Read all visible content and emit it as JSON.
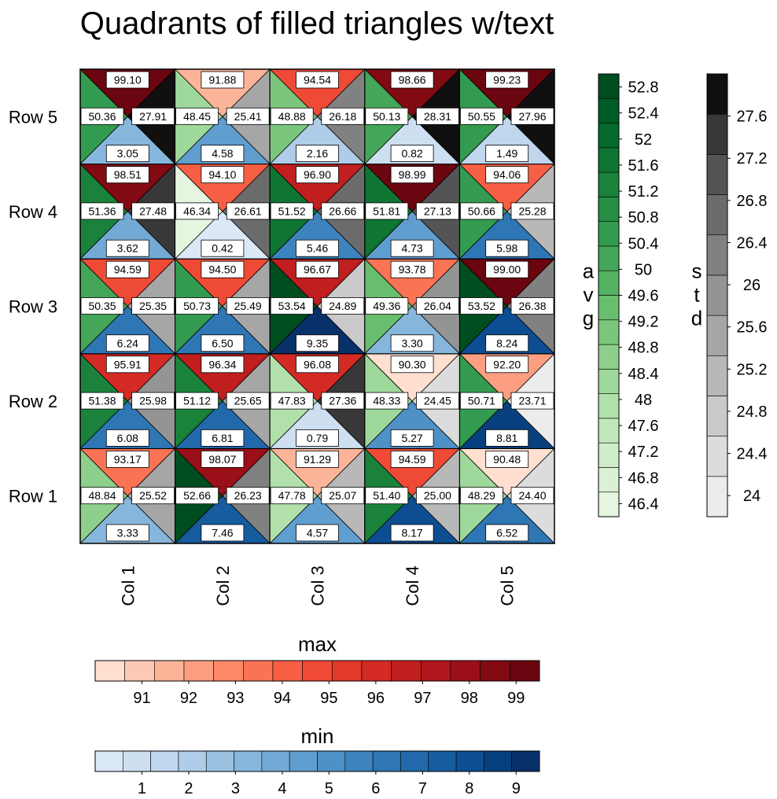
{
  "chart_data": {
    "type": "heatmap",
    "title": "Quadrants of filled triangles w/text",
    "rows": [
      "Row 1",
      "Row 2",
      "Row 3",
      "Row 4",
      "Row 5"
    ],
    "cols": [
      "Col 1",
      "Col 2",
      "Col 3",
      "Col 4",
      "Col 5"
    ],
    "quadrant_order": [
      "top: max",
      "left: avg",
      "right: std",
      "bottom: min"
    ],
    "max": [
      [
        93.17,
        98.07,
        91.29,
        94.59,
        90.48
      ],
      [
        95.91,
        96.34,
        96.08,
        90.3,
        92.2
      ],
      [
        94.59,
        94.5,
        96.67,
        93.78,
        99.0
      ],
      [
        98.51,
        94.1,
        96.9,
        98.99,
        94.06
      ],
      [
        99.1,
        91.88,
        94.54,
        98.66,
        99.23
      ]
    ],
    "avg": [
      [
        48.84,
        52.66,
        47.78,
        51.4,
        48.29
      ],
      [
        51.38,
        51.12,
        47.83,
        48.33,
        50.71
      ],
      [
        50.35,
        50.73,
        53.54,
        49.36,
        53.52
      ],
      [
        51.36,
        46.34,
        51.52,
        51.81,
        50.66
      ],
      [
        50.36,
        48.45,
        48.88,
        50.13,
        50.55
      ]
    ],
    "std": [
      [
        25.52,
        26.23,
        25.07,
        25.0,
        24.4
      ],
      [
        25.98,
        25.65,
        27.36,
        24.45,
        23.71
      ],
      [
        25.35,
        25.49,
        24.89,
        26.04,
        26.38
      ],
      [
        27.48,
        26.61,
        26.66,
        27.13,
        25.28
      ],
      [
        27.91,
        25.41,
        26.18,
        28.31,
        27.96
      ]
    ],
    "min": [
      [
        3.33,
        7.46,
        4.57,
        8.17,
        6.52
      ],
      [
        6.08,
        6.81,
        0.79,
        5.27,
        8.81
      ],
      [
        6.24,
        6.5,
        9.35,
        3.3,
        8.24
      ],
      [
        3.62,
        0.42,
        5.46,
        4.73,
        5.98
      ],
      [
        3.05,
        4.58,
        2.16,
        0.82,
        1.49
      ]
    ],
    "colorbars": {
      "avg": {
        "label": "avg",
        "range": [
          46.2,
          53.0
        ],
        "tick_labels": [
          "46.4",
          "46.8",
          "47.2",
          "47.6",
          "48",
          "48.4",
          "48.8",
          "49.2",
          "49.6",
          "50",
          "50.4",
          "50.8",
          "51.2",
          "51.6",
          "52",
          "52.4",
          "52.8"
        ],
        "colors": [
          "#e6f5e0",
          "#dbf1d5",
          "#d0edc9",
          "#c2e7bb",
          "#b1e0ab",
          "#9fd89b",
          "#8ecf8b",
          "#7bc67c",
          "#69bd6f",
          "#55b263",
          "#44a658",
          "#339b4f",
          "#268e44",
          "#1a823b",
          "#0e7532",
          "#05692c",
          "#005c26",
          "#004e20"
        ]
      },
      "std": {
        "label": "std",
        "range": [
          23.8,
          28.0
        ],
        "tick_labels": [
          "24",
          "24.4",
          "24.8",
          "25.2",
          "25.6",
          "26",
          "26.4",
          "26.8",
          "27.2",
          "27.6"
        ],
        "colors": [
          "#ececec",
          "#dcdcdc",
          "#cacaca",
          "#b8b8b8",
          "#a6a6a6",
          "#949494",
          "#818181",
          "#6b6b6b",
          "#545454",
          "#383838",
          "#101010"
        ]
      },
      "max": {
        "label": "max",
        "range": [
          90.0,
          99.5
        ],
        "tick_labels": [
          "91",
          "92",
          "93",
          "94",
          "95",
          "96",
          "97",
          "98",
          "99"
        ],
        "colors": [
          "#fedfd0",
          "#fdc9b4",
          "#fcb498",
          "#fc9e80",
          "#fc8969",
          "#fb7355",
          "#f75f44",
          "#ef4a36",
          "#e2392b",
          "#d42a24",
          "#c11e1f",
          "#b0161b",
          "#9a0f18",
          "#820a13",
          "#6b0510"
        ]
      },
      "min": {
        "label": "min",
        "range": [
          0.0,
          9.5
        ],
        "tick_labels": [
          "1",
          "2",
          "3",
          "4",
          "5",
          "6",
          "7",
          "8",
          "9"
        ],
        "colors": [
          "#dbe8f6",
          "#cddff1",
          "#bfd6ed",
          "#afcde8",
          "#9cc2e2",
          "#87b6dc",
          "#73aad5",
          "#609ecf",
          "#4e91c6",
          "#3d84be",
          "#2e76b4",
          "#2169aa",
          "#165c9f",
          "#0d4e92",
          "#083f7f",
          "#08316a"
        ]
      }
    }
  }
}
